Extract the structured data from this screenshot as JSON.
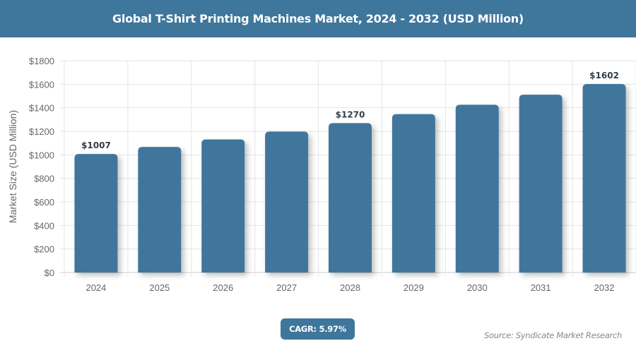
{
  "header": {
    "title": "Global T-Shirt Printing Machines Market, 2024 - 2032 (USD Million)"
  },
  "footer": {
    "cagr_label": "CAGR: 5.97%",
    "source": "Source: Syndicate Market Research"
  },
  "colors": {
    "bar": "#3f769c",
    "header": "#3f769c",
    "grid": "#e5e5e5",
    "axis_text": "#666666",
    "data_label": "#333d47"
  },
  "chart_data": {
    "type": "bar",
    "title": "Global T-Shirt Printing Machines Market, 2024 - 2032 (USD Million)",
    "xlabel": "",
    "ylabel": "Market Size (USD Million)",
    "categories": [
      "2024",
      "2025",
      "2026",
      "2027",
      "2028",
      "2029",
      "2030",
      "2031",
      "2032"
    ],
    "values": [
      1007,
      1067,
      1131,
      1198,
      1270,
      1346,
      1426,
      1511,
      1602
    ],
    "data_labels": [
      {
        "index": 0,
        "text": "$1007"
      },
      {
        "index": 4,
        "text": "$1270"
      },
      {
        "index": 8,
        "text": "$1602"
      }
    ],
    "ylim": [
      0,
      1800
    ],
    "yticks": [
      0,
      200,
      400,
      600,
      800,
      1000,
      1200,
      1400,
      1600,
      1800
    ],
    "ytick_labels": [
      "$0",
      "$200",
      "$400",
      "$600",
      "$800",
      "$1000",
      "$1200",
      "$1400",
      "$1600",
      "$1800"
    ],
    "grid": true,
    "legend": null
  }
}
